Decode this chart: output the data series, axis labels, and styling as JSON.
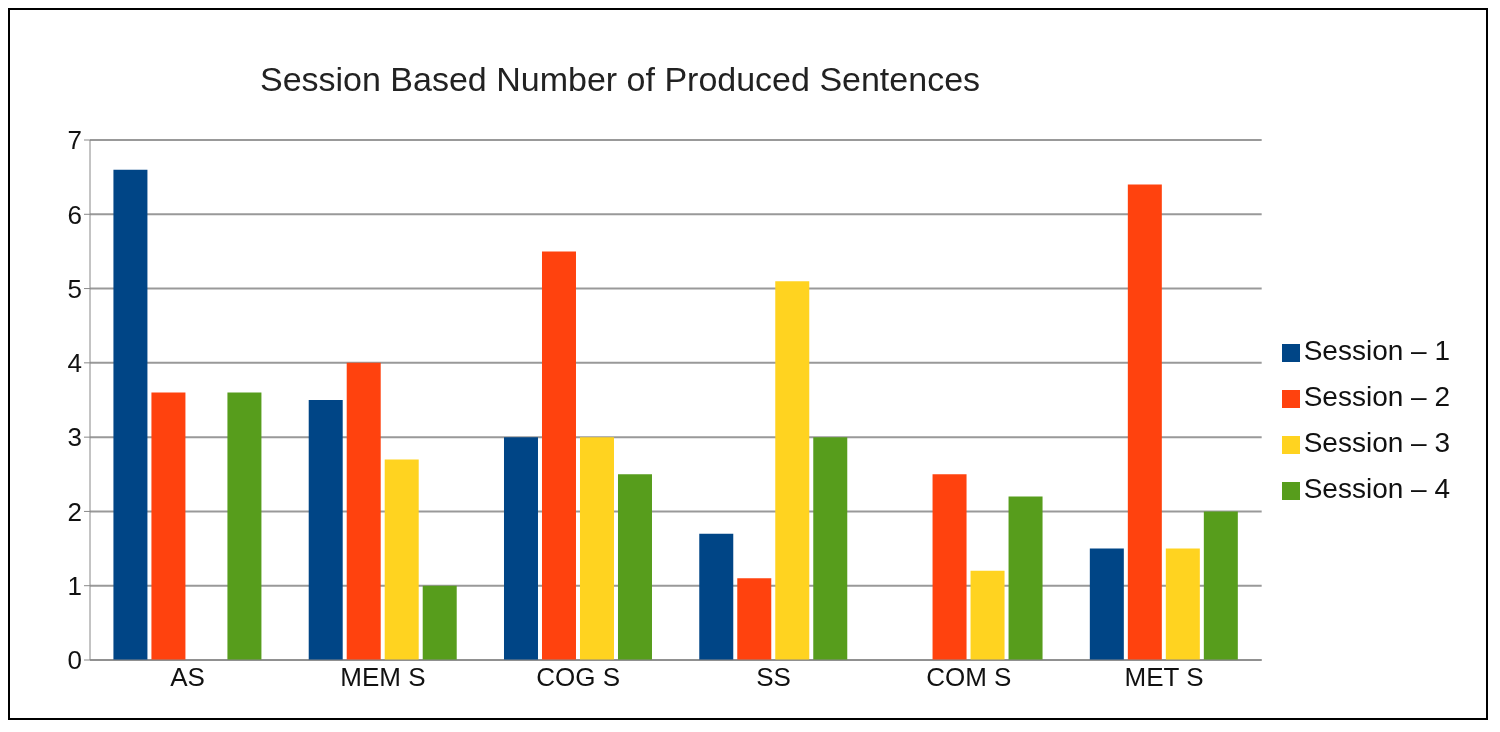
{
  "chart_data": {
    "type": "bar",
    "title": "Session Based Number of Produced Sentences",
    "categories": [
      "AS",
      "MEM S",
      "COG S",
      "SS",
      "COM S",
      "MET S"
    ],
    "series": [
      {
        "name": "Session – 1",
        "color": "#004586",
        "values": [
          6.6,
          3.5,
          3.0,
          1.7,
          0,
          1.5
        ]
      },
      {
        "name": "Session – 2",
        "color": "#ff420e",
        "values": [
          3.6,
          4.0,
          5.5,
          1.1,
          2.5,
          6.4
        ]
      },
      {
        "name": "Session – 3",
        "color": "#ffd320",
        "values": [
          0,
          2.7,
          3.0,
          5.1,
          1.2,
          1.5
        ]
      },
      {
        "name": "Session – 4",
        "color": "#579d1c",
        "values": [
          3.6,
          1.0,
          2.5,
          3.0,
          2.2,
          2.0
        ]
      }
    ],
    "ylim": [
      0,
      7
    ],
    "yticks": [
      0,
      1,
      2,
      3,
      4,
      5,
      6,
      7
    ],
    "grid": "y",
    "legend": "right"
  }
}
